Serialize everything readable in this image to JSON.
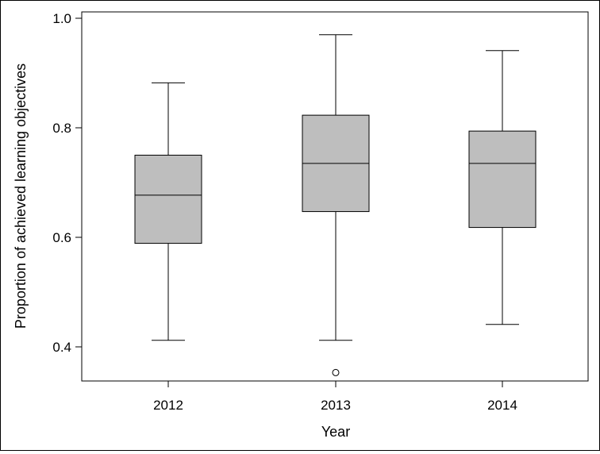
{
  "chart_data": {
    "type": "boxplot",
    "xlabel": "Year",
    "ylabel": "Proportion of achieved learning objectives",
    "ylim": [
      0.33,
      1.01
    ],
    "yticks": [
      0.4,
      0.6,
      0.8,
      1.0
    ],
    "ytick_labels": [
      "0.4",
      "0.6",
      "0.8",
      "1.0"
    ],
    "categories": [
      "2012",
      "2013",
      "2014"
    ],
    "boxes": [
      {
        "category": "2012",
        "whisker_low": 0.412,
        "q1": 0.589,
        "median": 0.677,
        "q3": 0.75,
        "whisker_high": 0.882,
        "outliers": []
      },
      {
        "category": "2013",
        "whisker_low": 0.412,
        "q1": 0.647,
        "median": 0.735,
        "q3": 0.823,
        "whisker_high": 0.97,
        "outliers": [
          0.353
        ]
      },
      {
        "category": "2014",
        "whisker_low": 0.441,
        "q1": 0.618,
        "median": 0.735,
        "q3": 0.794,
        "whisker_high": 0.941,
        "outliers": []
      }
    ],
    "grid": false,
    "box_color": "#bebebe",
    "line_color": "#000000"
  }
}
